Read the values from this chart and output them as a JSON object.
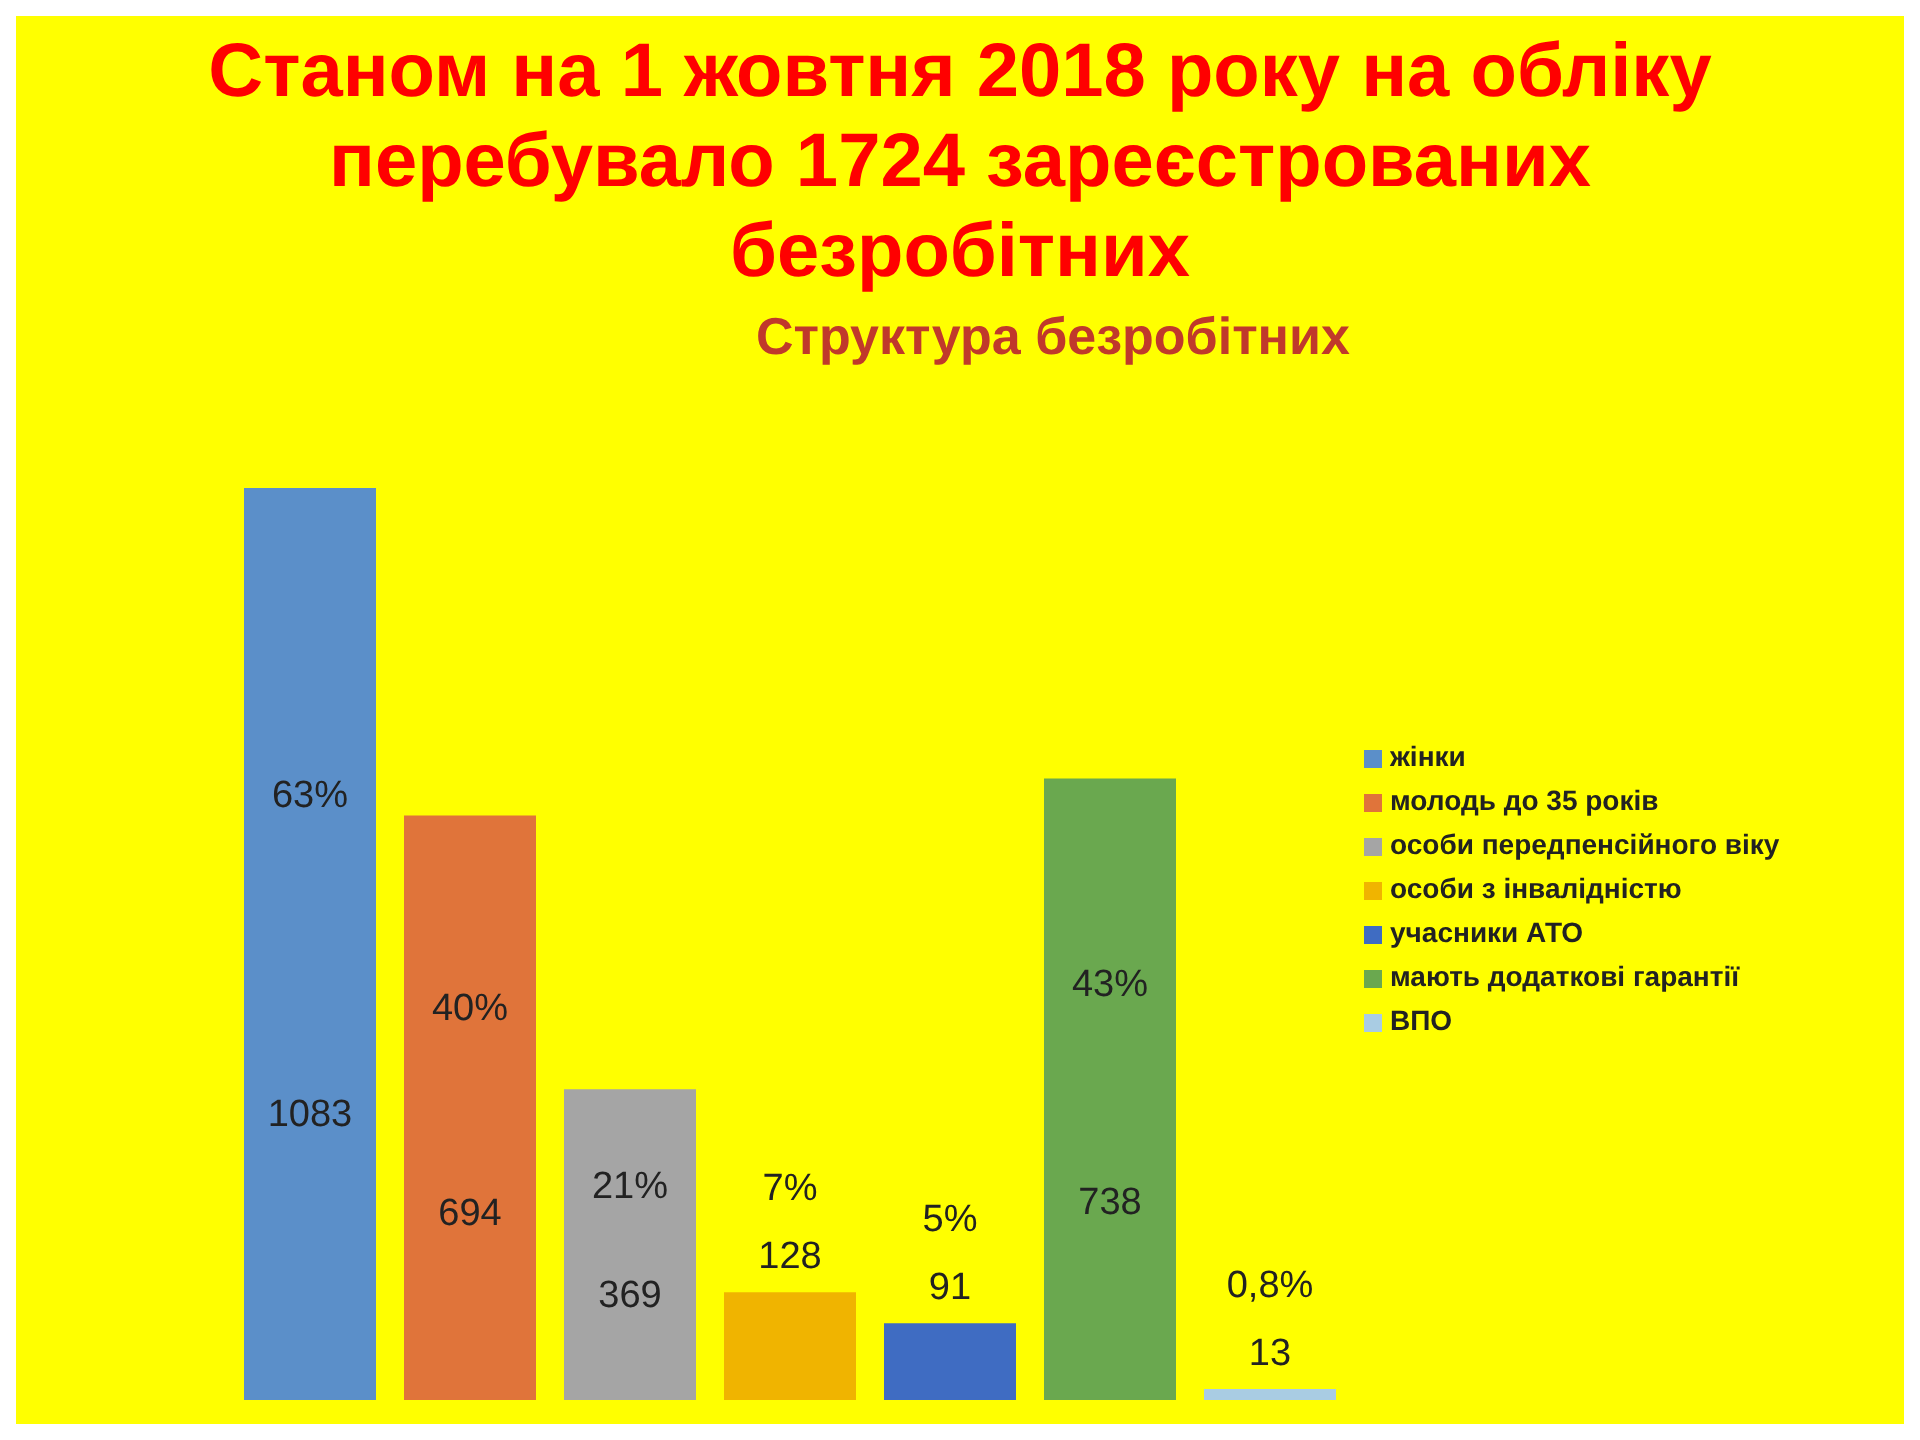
{
  "chart_data": {
    "type": "bar",
    "title": "Станом на 1 жовтня 2018 року на обліку перебувало 1724 зареєстрованих безробітних",
    "subtitle": "Структура безробітних",
    "categories": [
      null
    ],
    "series": [
      {
        "name": "жінки",
        "color": "#5b8fc9",
        "values": [
          1083
        ]
      },
      {
        "name": "молодь до 35 років",
        "color": "#e0743a",
        "values": [
          694
        ]
      },
      {
        "name": "особи передпенсійного віку",
        "color": "#a5a5a5",
        "values": [
          369
        ]
      },
      {
        "name": "особи з інвалідністю",
        "color": "#f0b400",
        "values": [
          128
        ]
      },
      {
        "name": "учасники АТО",
        "color": "#3f6cc2",
        "values": [
          91
        ]
      },
      {
        "name": "мають додаткові гарантії",
        "color": "#6aa84f",
        "values": [
          738
        ]
      },
      {
        "name": "ВПО",
        "color": "#a9cce3",
        "values": [
          13
        ]
      }
    ],
    "data_labels": true,
    "annotations": [
      "63%",
      "40%",
      "21%",
      "7%",
      "5%",
      "43%",
      "0,8%"
    ],
    "legend": "right",
    "grid": false
  }
}
